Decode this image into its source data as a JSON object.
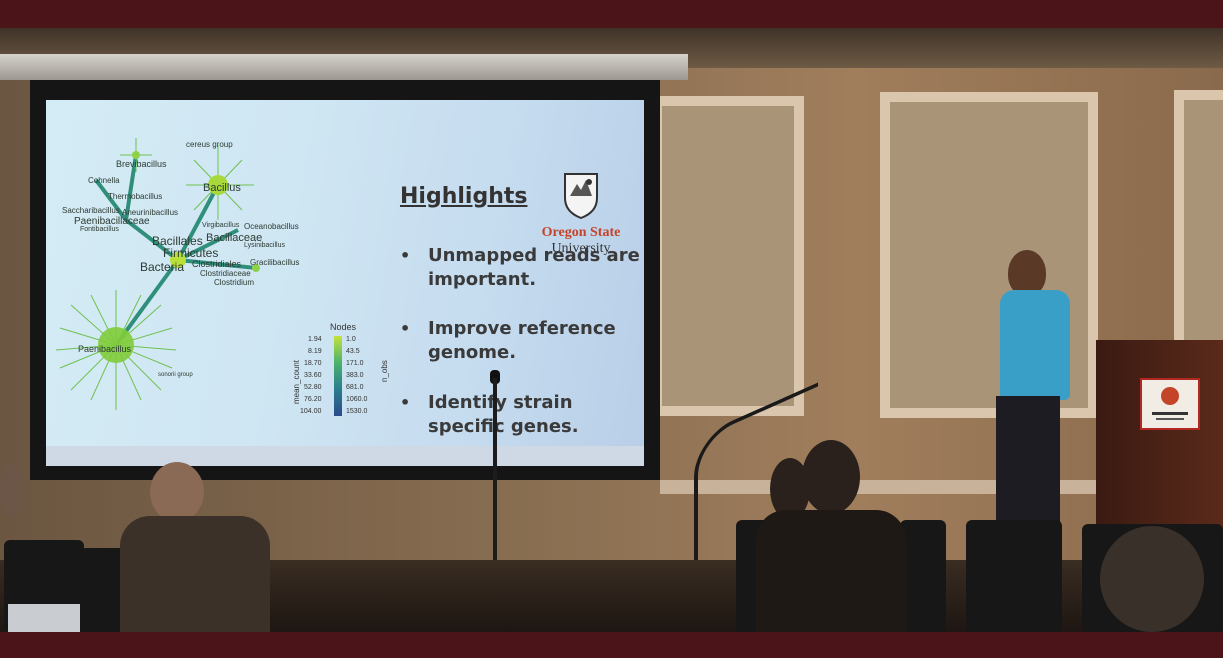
{
  "slide": {
    "heading": "Highlights",
    "bullets": [
      "Unmapped reads are important.",
      "Improve reference genome.",
      "Identify strain specific genes."
    ],
    "logo": {
      "name": "Oregon State",
      "sub": "University",
      "icon": "oregon-state-seal-icon"
    }
  },
  "network": {
    "labels": [
      "cereus group",
      "Brevibacillus",
      "Cohnella",
      "Thermobacillus",
      "Saccharibacillus",
      "Aneurinibacillus",
      "Paenibacillaceae",
      "Fontibacillus",
      "Bacillus",
      "Virgibacillus",
      "Oceanobacillus",
      "Bacillaceae",
      "Lysinibacillus",
      "Bacillales",
      "Firmicutes",
      "Bacteria",
      "Clostridiales",
      "Gracilibacillus",
      "Clostridiaceae",
      "Clostridium",
      "Paenibacillus",
      "sonorii group"
    ],
    "node_colors": {
      "low": "#c3e23a",
      "mid": "#4bb26b",
      "high": "#2d4a8c"
    }
  },
  "legend": {
    "title": "Nodes",
    "left_ticks": [
      "1.94",
      "8.19",
      "18.70",
      "33.60",
      "52.80",
      "76.20",
      "104.00"
    ],
    "right_ticks": [
      "1.0",
      "43.5",
      "171.0",
      "383.0",
      "681.0",
      "1060.0",
      "1530.0"
    ],
    "left_axis": "mean_count",
    "right_axis": "n_obs"
  },
  "podium": {
    "plaque_icon": "oregon-state-alumni-plaque-icon"
  }
}
